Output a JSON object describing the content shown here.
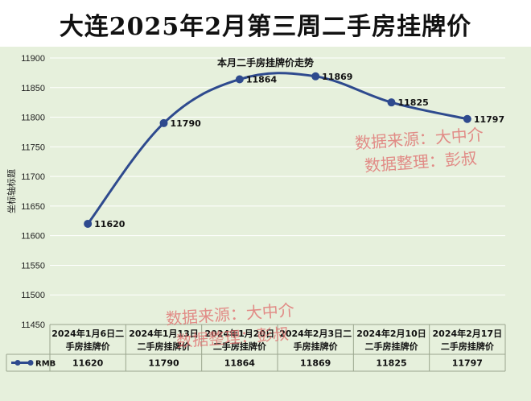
{
  "header": {
    "title": "大连2025年2月第三周二手房挂牌价"
  },
  "watermarks": [
    {
      "line1": "数据来源：大中介",
      "line2": "数据整理：彭叔"
    },
    {
      "line1": "数据来源：大中介",
      "line2": "数据整理：彭叔"
    }
  ],
  "colors": {
    "line": "#2e4a8e",
    "marker": "#2e4a8e",
    "background": "#e6f0dc",
    "grid": "#ffffff",
    "watermark": "#e06a6a"
  },
  "chart_data": {
    "type": "line",
    "title": "本月二手房挂牌价走势",
    "ylabel": "坐标轴标题",
    "xlabel": "",
    "ylim": [
      11450,
      11900
    ],
    "yticks": [
      11450,
      11500,
      11550,
      11600,
      11650,
      11700,
      11750,
      11800,
      11850,
      11900
    ],
    "grid": true,
    "smooth": true,
    "categories": [
      [
        "2024年1月6日二",
        "手房挂牌价"
      ],
      [
        "2024年1月13日",
        "二手房挂牌价"
      ],
      [
        "2024年1月20日",
        "二手房挂牌价"
      ],
      [
        "2024年2月3日二",
        "手房挂牌价"
      ],
      [
        "2024年2月10日",
        "二手房挂牌价"
      ],
      [
        "2024年2月17日",
        "二手房挂牌价"
      ]
    ],
    "series": [
      {
        "name": "RMB",
        "values": [
          11620,
          11790,
          11864,
          11869,
          11825,
          11797
        ]
      }
    ],
    "data_table": true
  }
}
